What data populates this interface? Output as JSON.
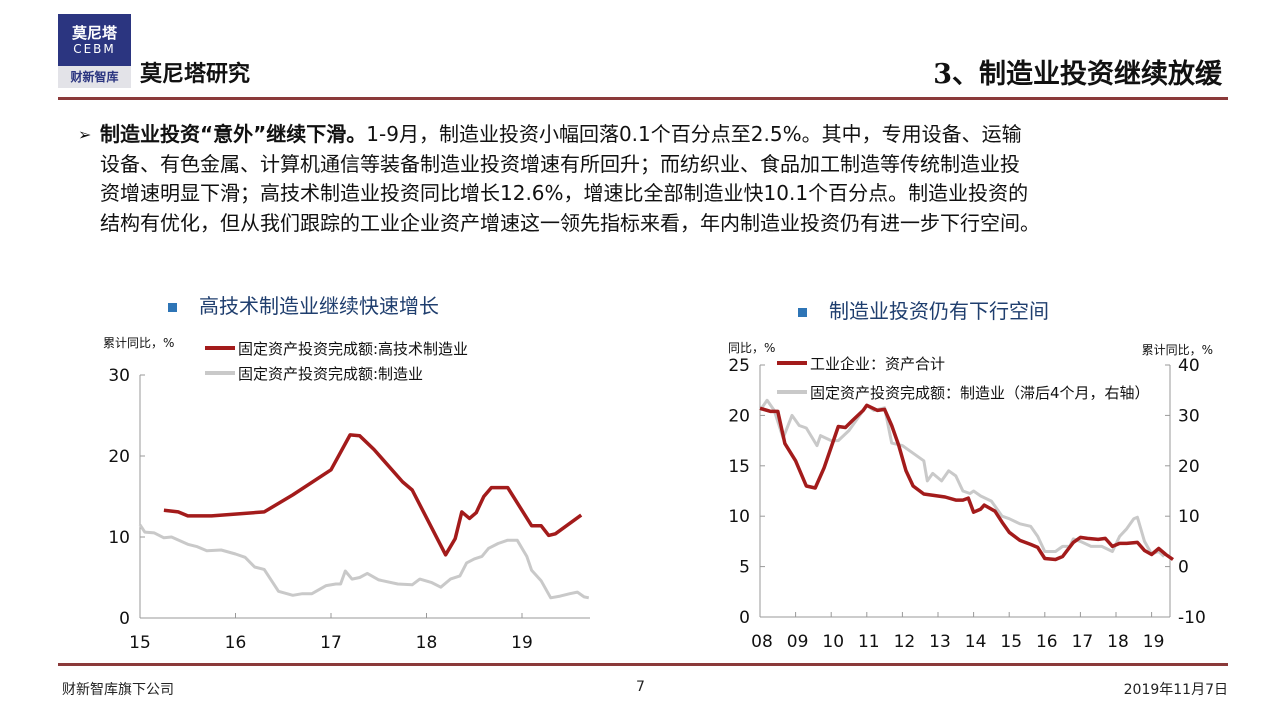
{
  "header": {
    "logo": {
      "line1": "莫尼塔",
      "line2": "CEBM",
      "line3": "财新智库"
    },
    "brand": "莫尼塔研究",
    "title": "3、制造业投资继续放缓"
  },
  "body": {
    "bullet": "➢",
    "lead": "制造业投资“意外”继续下滑。",
    "lines": [
      "1-9月，制造业投资小幅回落0.1个百分点至2.5%。其中，专用设备、运输",
      "设备、有色金属、计算机通信等装备制造业投资增速有所回升；而纺织业、食品加工制造等传统制造业投",
      "资增速明显下滑；高技术制造业投资同比增长12.6%，增速比全部制造业快10.1个百分点。制造业投资的",
      "结构有优化，但从我们跟踪的工业企业资产增速这一领先指标来看，年内制造业投资仍有进一步下行空间。"
    ]
  },
  "chart_data": [
    {
      "type": "line",
      "title": "高技术制造业继续快速增长",
      "ylabel": "累计同比，%",
      "ylim": [
        0,
        30
      ],
      "yticks": [
        "0",
        "10",
        "20",
        "30"
      ],
      "xlim": [
        15,
        19.75
      ],
      "xticks": [
        "15",
        "16",
        "17",
        "18",
        "19"
      ],
      "grid": false,
      "legend": "top",
      "colors": [
        "#a31b1b",
        "#c9c9c9"
      ],
      "series": [
        {
          "name": "固定资产投资完成额:高技术制造业",
          "x": [
            15.25,
            15.4,
            15.5,
            15.75,
            16.3,
            16.6,
            17.0,
            17.2,
            17.3,
            17.45,
            17.75,
            17.85,
            18.2,
            18.3,
            18.37,
            18.45,
            18.52,
            18.6,
            18.68,
            18.85,
            19.1,
            19.2,
            19.28,
            19.35,
            19.62
          ],
          "y": [
            13.3,
            13.1,
            12.6,
            12.6,
            13.1,
            15.2,
            18.3,
            22.6,
            22.5,
            20.8,
            16.8,
            15.8,
            7.8,
            9.8,
            13.1,
            12.3,
            13.0,
            15.0,
            16.1,
            16.1,
            11.4,
            11.4,
            10.2,
            10.4,
            12.7
          ]
        },
        {
          "name": "固定资产投资完成额:制造业",
          "x": [
            15.0,
            15.05,
            15.15,
            15.25,
            15.33,
            15.5,
            15.6,
            15.7,
            15.85,
            16.0,
            16.1,
            16.2,
            16.3,
            16.45,
            16.6,
            16.7,
            16.8,
            16.95,
            17.05,
            17.1,
            17.15,
            17.22,
            17.3,
            17.38,
            17.5,
            17.7,
            17.85,
            17.93,
            18.05,
            18.15,
            18.25,
            18.35,
            18.42,
            18.5,
            18.58,
            18.65,
            18.75,
            18.85,
            18.95,
            19.05,
            19.1,
            19.2,
            19.3,
            19.4,
            19.5,
            19.58,
            19.65,
            19.7
          ],
          "y": [
            11.5,
            10.6,
            10.5,
            9.9,
            10.0,
            9.1,
            8.8,
            8.3,
            8.4,
            7.9,
            7.5,
            6.3,
            6.0,
            3.3,
            2.8,
            3.0,
            3.0,
            4.0,
            4.2,
            4.2,
            5.8,
            4.8,
            5.0,
            5.5,
            4.7,
            4.2,
            4.1,
            4.8,
            4.4,
            3.8,
            4.8,
            5.2,
            6.8,
            7.3,
            7.6,
            8.6,
            9.2,
            9.6,
            9.6,
            7.6,
            5.9,
            4.6,
            2.5,
            2.7,
            3.0,
            3.2,
            2.6,
            2.5
          ]
        }
      ]
    },
    {
      "type": "line",
      "title": "制造业投资仍有下行空间",
      "ylabel": "同比，%",
      "ylabel_right": "累计同比，%",
      "ylim": [
        0,
        25
      ],
      "ylim_right": [
        -10,
        40
      ],
      "yticks": [
        "0",
        "5",
        "10",
        "15",
        "20",
        "25"
      ],
      "yticks_right": [
        "-10",
        "0",
        "10",
        "20",
        "30",
        "40"
      ],
      "xlim": [
        8,
        19.6
      ],
      "xticks": [
        "08",
        "09",
        "10",
        "11",
        "12",
        "13",
        "14",
        "15",
        "16",
        "17",
        "18",
        "19"
      ],
      "grid": false,
      "legend": "top-left",
      "colors": [
        "#a31b1b",
        "#c9c9c9"
      ],
      "series": [
        {
          "name": "工业企业：资产合计",
          "axis": "left",
          "x": [
            8.0,
            8.3,
            8.5,
            8.7,
            9.0,
            9.3,
            9.55,
            9.8,
            10.2,
            10.4,
            10.6,
            10.9,
            11.0,
            11.3,
            11.5,
            11.7,
            11.9,
            12.1,
            12.3,
            12.6,
            12.8,
            13.2,
            13.5,
            13.7,
            13.85,
            14.0,
            14.2,
            14.3,
            14.6,
            14.8,
            15.0,
            15.3,
            15.6,
            15.8,
            16.0,
            16.3,
            16.5,
            16.8,
            17.0,
            17.2,
            17.5,
            17.7,
            17.9,
            18.1,
            18.3,
            18.6,
            18.8,
            19.0,
            19.2,
            19.4,
            19.6
          ],
          "y": [
            20.7,
            20.4,
            20.4,
            17.2,
            15.5,
            13.0,
            12.8,
            14.8,
            18.9,
            18.8,
            19.5,
            20.5,
            21.0,
            20.5,
            20.6,
            19.0,
            17.0,
            14.5,
            13.0,
            12.2,
            12.1,
            11.9,
            11.6,
            11.6,
            11.8,
            10.4,
            10.7,
            11.1,
            10.5,
            9.4,
            8.4,
            7.6,
            7.2,
            6.9,
            5.8,
            5.7,
            6.0,
            7.4,
            7.9,
            7.8,
            7.7,
            7.8,
            7.0,
            7.3,
            7.3,
            7.4,
            6.6,
            6.2,
            6.8,
            6.2,
            5.7
          ]
        },
        {
          "name": "固定资产投资完成额：制造业（滞后4个月，右轴）",
          "axis": "right",
          "x": [
            8.0,
            8.2,
            8.4,
            8.65,
            8.9,
            9.1,
            9.3,
            9.6,
            9.7,
            10.0,
            10.2,
            10.5,
            10.8,
            11.0,
            11.2,
            11.5,
            11.7,
            12.0,
            12.3,
            12.6,
            12.7,
            12.85,
            13.1,
            13.3,
            13.5,
            13.7,
            13.9,
            14.0,
            14.2,
            14.5,
            14.8,
            15.0,
            15.3,
            15.6,
            15.8,
            16.0,
            16.3,
            16.5,
            16.7,
            16.8,
            17.0,
            17.3,
            17.6,
            17.9,
            18.1,
            18.3,
            18.5,
            18.6,
            18.8,
            19.0,
            19.2,
            19.35
          ],
          "y": [
            31,
            33,
            31,
            25.5,
            30,
            28,
            27.5,
            24,
            26,
            25,
            25,
            27,
            30,
            32,
            31,
            31.5,
            24.5,
            24,
            22.5,
            21,
            17,
            18.5,
            17,
            19,
            18,
            15,
            14.5,
            15,
            14,
            13,
            10,
            9.5,
            8.5,
            8,
            6,
            3,
            3,
            4,
            4,
            5.5,
            5,
            4,
            4,
            3,
            6,
            7.5,
            9.5,
            9.8,
            5,
            2.5,
            3,
            2
          ]
        }
      ]
    }
  ],
  "footer": {
    "company": "财新智库旗下公司",
    "page": "7",
    "date": "2019年11月7日"
  }
}
